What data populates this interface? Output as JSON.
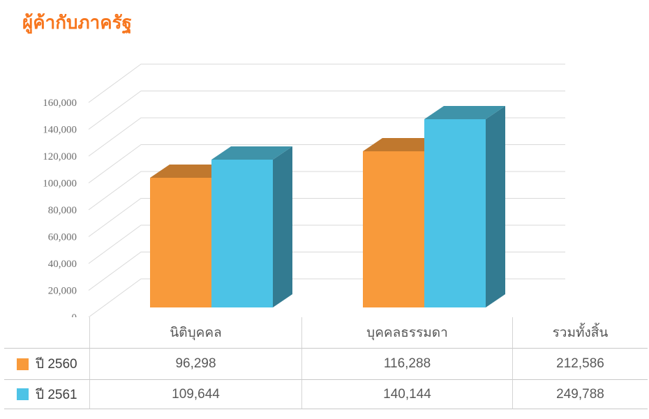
{
  "title": "ผู้ค้ากับภาครัฐ",
  "colors": {
    "title": "#f7761e",
    "gridline": "#d9d9d9",
    "axis_text": "#6e6e6e",
    "series_2560": "#f89a3b",
    "series_2561": "#4ec3e6",
    "table_border": "#cccccc",
    "table_text": "#565656"
  },
  "chart_data": {
    "type": "bar",
    "projection": "3d",
    "title": "ผู้ค้ากับภาครัฐ",
    "categories": [
      "นิติบุคคล",
      "บุคคลธรรมดา"
    ],
    "series": [
      {
        "name": "ปี 2560",
        "values": [
          96298,
          116288
        ],
        "total": 212586,
        "colors": {
          "front": "#f89a3b",
          "top": "#c0782e",
          "side": "#a96a22"
        }
      },
      {
        "name": "ปี 2561",
        "values": [
          109644,
          140144
        ],
        "total": 249788,
        "colors": {
          "front": "#4cc3e6",
          "top": "#3f93a9",
          "side": "#337b91"
        }
      }
    ],
    "ylim": [
      0,
      160000
    ],
    "ytick_interval": 20000,
    "ytick_labels": [
      "0",
      "20,000",
      "40,000",
      "60,000",
      "80,000",
      "100,000",
      "120,000",
      "140,000",
      "160,000"
    ],
    "grid": true,
    "legend_position": "data-table-left"
  },
  "table": {
    "columns": [
      "",
      "นิติบุคคล",
      "บุคคลธรรมดา",
      "รวมทั้งสิ้น"
    ],
    "rows": [
      {
        "label": "ปี 2560",
        "color": "#f89a3b",
        "values": [
          "96,298",
          "116,288",
          "212,586"
        ]
      },
      {
        "label": "ปี 2561",
        "color": "#4ec3e6",
        "values": [
          "109,644",
          "140,144",
          "249,788"
        ]
      }
    ]
  }
}
